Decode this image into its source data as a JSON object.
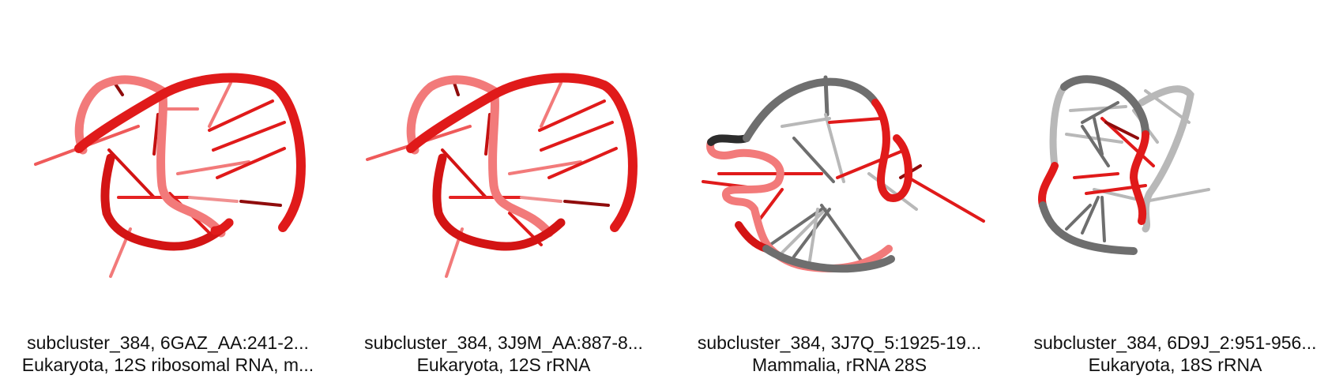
{
  "colors": {
    "highlight": "#e01a1a",
    "highlight_dark": "#8f0c0c",
    "highlight_light": "#f27a7a",
    "backbone": "#6e6e6e",
    "backbone_light": "#b8b8b8",
    "backbone_dark": "#2c2c2c"
  },
  "panels": [
    {
      "line1": "subcluster_384, 6GAZ_AA:241-2...",
      "line2": "Eukaryota, 12S ribosomal RNA, m..."
    },
    {
      "line1": "subcluster_384, 3J9M_AA:887-8...",
      "line2": "Eukaryota, 12S rRNA"
    },
    {
      "line1": "subcluster_384, 3J7Q_5:1925-19...",
      "line2": "Mammalia, rRNA 28S"
    },
    {
      "line1": "subcluster_384, 6D9J_2:951-956...",
      "line2": "Eukaryota, 18S rRNA"
    }
  ]
}
